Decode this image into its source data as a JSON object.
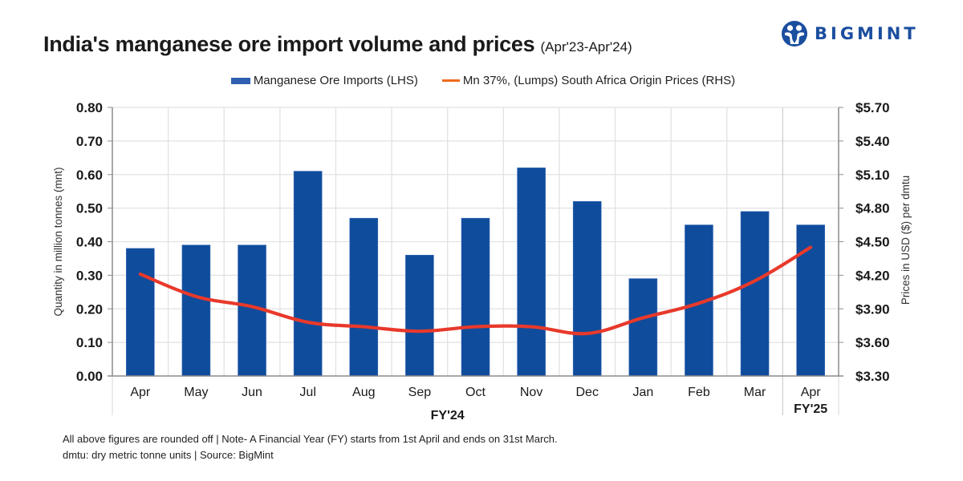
{
  "header": {
    "title": "India's manganese ore import volume and prices",
    "subtitle": "(Apr'23-Apr'24)"
  },
  "logo": {
    "text": "BIGMINT",
    "icon": "bigmint-people-icon",
    "color": "#1b4e9f"
  },
  "legend": [
    {
      "label": "Manganese Ore Imports (LHS)",
      "kind": "bar",
      "color": "#2e5fb0"
    },
    {
      "label": "Mn 37%, (Lumps) South Africa Origin Prices (RHS)",
      "kind": "line",
      "color": "#f06a1c"
    }
  ],
  "chart_data": {
    "type": "bar+line",
    "title": "India's manganese ore import volume and prices (Apr'23-Apr'24)",
    "categories": [
      "Apr",
      "May",
      "Jun",
      "Jul",
      "Aug",
      "Sep",
      "Oct",
      "Nov",
      "Dec",
      "Jan",
      "Feb",
      "Mar",
      "Apr"
    ],
    "category_groups": [
      {
        "label": "FY'24",
        "count": 12
      },
      {
        "label": "FY'25",
        "count": 1
      }
    ],
    "series": [
      {
        "name": "Manganese Ore Imports (LHS)",
        "type": "bar",
        "axis": "left",
        "color": "#0f4c9c",
        "values": [
          0.38,
          0.39,
          0.39,
          0.61,
          0.47,
          0.36,
          0.47,
          0.62,
          0.52,
          0.29,
          0.45,
          0.49,
          0.45
        ]
      },
      {
        "name": "Mn 37%, (Lumps) South Africa Origin Prices (RHS)",
        "type": "line",
        "axis": "right",
        "color": "#e8392b",
        "values": [
          4.21,
          4.01,
          3.92,
          3.78,
          3.74,
          3.7,
          3.74,
          3.74,
          3.68,
          3.82,
          3.95,
          4.15,
          4.45
        ]
      }
    ],
    "ylabel": "Quantity in million tonnes (mnt)",
    "ylim": [
      0,
      0.8
    ],
    "yticks": [
      "0.00",
      "0.10",
      "0.20",
      "0.30",
      "0.40",
      "0.50",
      "0.60",
      "0.70",
      "0.80"
    ],
    "y2label": "Prices in USD ($) per dmtu",
    "y2lim": [
      3.3,
      5.7
    ],
    "y2ticks": [
      "$3.30",
      "$3.60",
      "$3.90",
      "$4.20",
      "$4.50",
      "$4.80",
      "$5.10",
      "$5.40",
      "$5.70"
    ],
    "grid": true,
    "legend_position": "top-center"
  },
  "footnotes": [
    "All above figures are rounded off | Note- A Financial Year (FY) starts from 1st April and ends on 31st March.",
    "dmtu: dry metric tonne units | Source: BigMint"
  ]
}
